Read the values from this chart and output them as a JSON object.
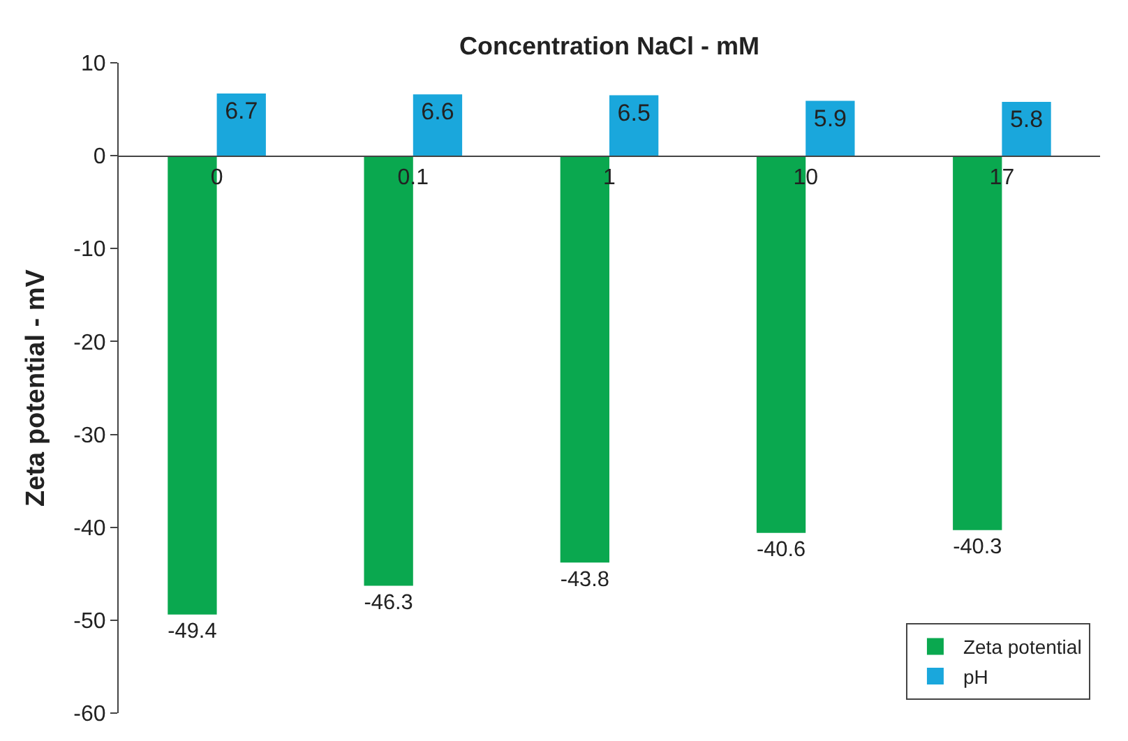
{
  "chart_data": {
    "type": "bar",
    "xlabel": "Concentration NaCl - mM",
    "ylabel": "Zeta potential - mV",
    "categories": [
      "0",
      "0.1",
      "1",
      "10",
      "17"
    ],
    "series": [
      {
        "name": "Zeta potential",
        "color": "#0aa84f",
        "values": [
          -49.4,
          -46.3,
          -43.8,
          -40.6,
          -40.3
        ]
      },
      {
        "name": "pH",
        "color": "#1aa7dc",
        "values": [
          6.7,
          6.6,
          6.5,
          5.9,
          5.8
        ]
      }
    ],
    "ylim": [
      -60,
      10
    ],
    "yticks": [
      -60,
      -50,
      -40,
      -30,
      -20,
      -10,
      0,
      10
    ],
    "data_labels": true,
    "legend": "bottom right"
  }
}
